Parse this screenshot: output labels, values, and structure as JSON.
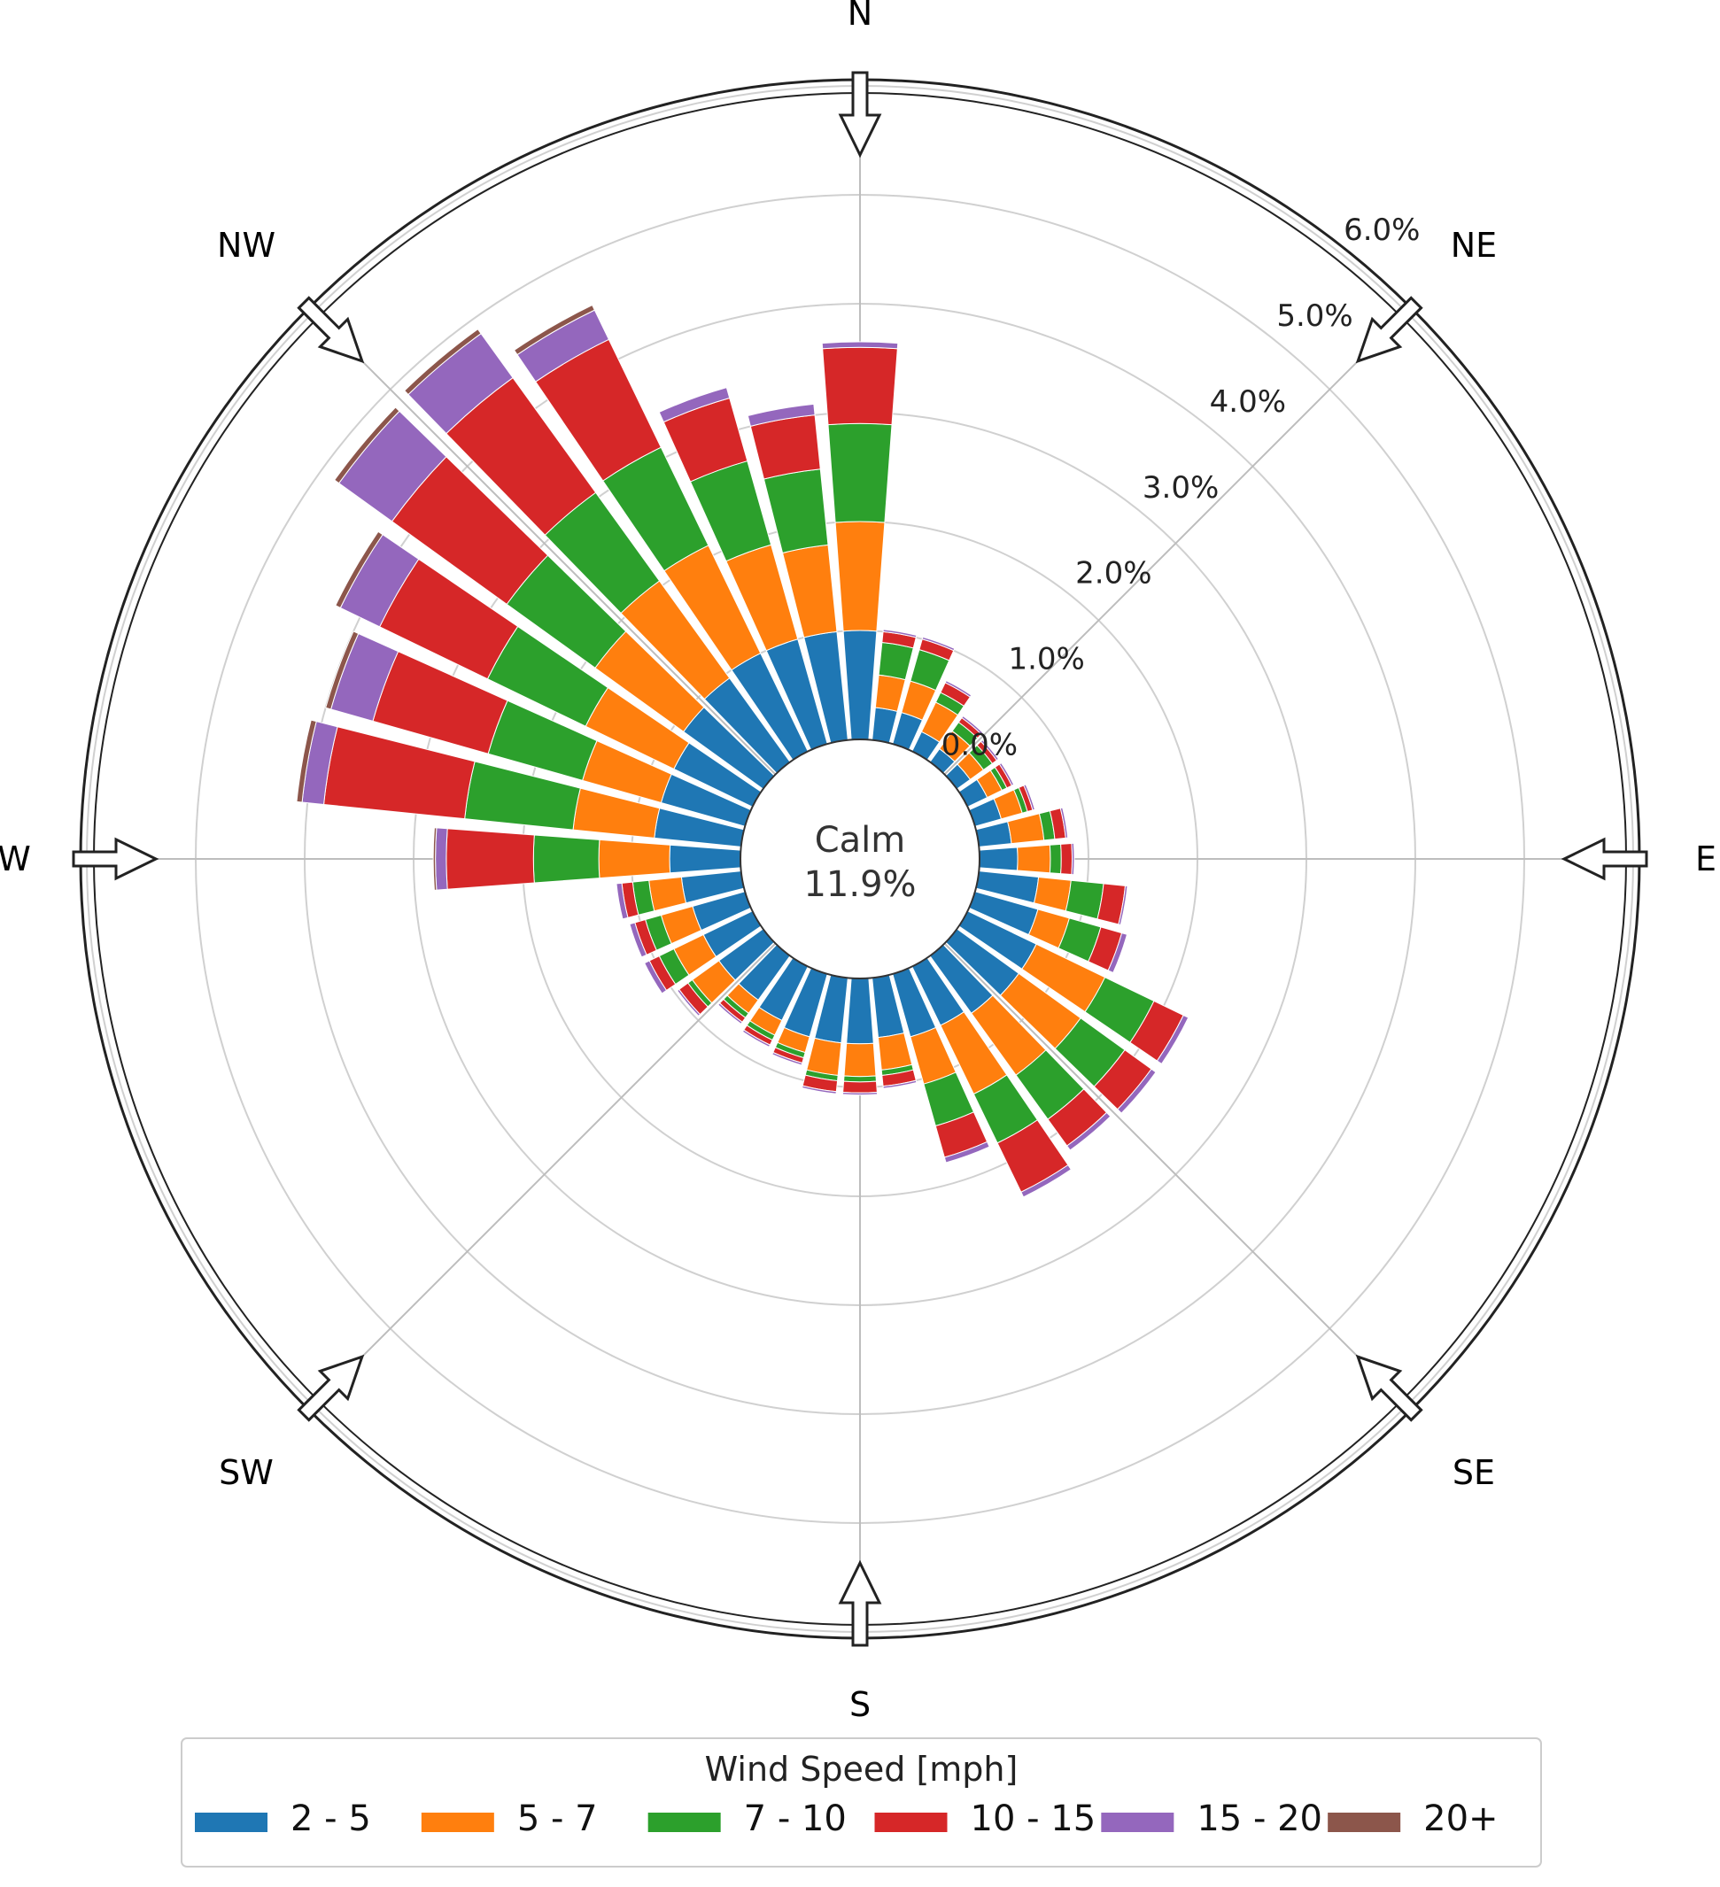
{
  "chart_data": {
    "type": "wind_rose",
    "title": "",
    "calm": {
      "label": "Calm",
      "value_text": "11.9%"
    },
    "compass_labels": [
      "N",
      "NE",
      "E",
      "SE",
      "S",
      "SW",
      "W",
      "NW"
    ],
    "radial_ticks": [
      "0.0%",
      "1.0%",
      "2.0%",
      "3.0%",
      "4.0%",
      "5.0%",
      "6.0%"
    ],
    "radial_tick_values": [
      0,
      1,
      2,
      3,
      4,
      5,
      6
    ],
    "rmax": 6.5,
    "grid": true,
    "sector_count": 36,
    "sector_degrees": [
      0,
      10,
      20,
      30,
      40,
      50,
      60,
      70,
      80,
      90,
      100,
      110,
      120,
      130,
      140,
      150,
      160,
      170,
      180,
      190,
      200,
      210,
      220,
      230,
      240,
      250,
      260,
      270,
      280,
      290,
      300,
      310,
      320,
      330,
      340,
      350
    ],
    "legend": {
      "title": "Wind Speed [mph]",
      "placement": "bottom",
      "bins": [
        "2 - 5",
        "5 - 7",
        "7 - 10",
        "10 - 15",
        "15 - 20",
        "20+"
      ],
      "colors": [
        "#1f77b4",
        "#ff7f0e",
        "#2ca02c",
        "#d62728",
        "#9467bd",
        "#8c564b"
      ]
    },
    "series": [
      {
        "name": "2 - 5",
        "values": [
          1.0,
          0.3,
          0.3,
          0.2,
          0.15,
          0.15,
          0.2,
          0.25,
          0.3,
          0.35,
          0.55,
          0.6,
          0.7,
          0.7,
          0.65,
          0.6,
          0.6,
          0.55,
          0.6,
          0.6,
          0.6,
          0.55,
          0.5,
          0.5,
          0.5,
          0.5,
          0.55,
          0.65,
          0.8,
          0.8,
          0.8,
          0.9,
          0.95,
          1.0,
          1.0,
          1.0
        ]
      },
      {
        "name": "5 - 7",
        "values": [
          1.0,
          0.3,
          0.3,
          0.3,
          0.2,
          0.15,
          0.15,
          0.2,
          0.3,
          0.3,
          0.3,
          0.3,
          0.7,
          0.7,
          0.7,
          0.7,
          0.45,
          0.3,
          0.3,
          0.3,
          0.15,
          0.15,
          0.15,
          0.3,
          0.3,
          0.3,
          0.3,
          0.65,
          0.75,
          0.75,
          0.9,
          1.0,
          1.1,
          1.1,
          0.9,
          0.8
        ]
      },
      {
        "name": "7 - 10",
        "values": [
          0.9,
          0.3,
          0.3,
          0.1,
          0.1,
          0.1,
          0.05,
          0.05,
          0.1,
          0.1,
          0.3,
          0.3,
          0.5,
          0.5,
          0.5,
          0.5,
          0.4,
          0.05,
          0.05,
          0.05,
          0.05,
          0.05,
          0.05,
          0.05,
          0.15,
          0.15,
          0.15,
          0.6,
          1.0,
          0.9,
          1.0,
          1.0,
          1.0,
          1.0,
          0.8,
          0.7
        ]
      },
      {
        "name": "10 - 15",
        "values": [
          0.7,
          0.1,
          0.1,
          0.1,
          0.05,
          0.05,
          0.05,
          0.05,
          0.1,
          0.1,
          0.2,
          0.2,
          0.3,
          0.3,
          0.3,
          0.5,
          0.3,
          0.1,
          0.1,
          0.1,
          0.05,
          0.05,
          0.05,
          0.1,
          0.1,
          0.1,
          0.1,
          0.8,
          1.3,
          1.1,
          1.1,
          1.3,
          1.3,
          1.1,
          0.6,
          0.5
        ]
      },
      {
        "name": "15 - 20",
        "values": [
          0.05,
          0.02,
          0.02,
          0.02,
          0.02,
          0.02,
          0.02,
          0.02,
          0.02,
          0.02,
          0.02,
          0.05,
          0.05,
          0.05,
          0.05,
          0.05,
          0.05,
          0.02,
          0.02,
          0.02,
          0.02,
          0.02,
          0.02,
          0.02,
          0.05,
          0.05,
          0.05,
          0.1,
          0.2,
          0.4,
          0.4,
          0.6,
          0.5,
          0.3,
          0.1,
          0.1
        ]
      },
      {
        "name": "20+",
        "values": [
          0.0,
          0.0,
          0.0,
          0.0,
          0.0,
          0.0,
          0.0,
          0.0,
          0.0,
          0.0,
          0.0,
          0.0,
          0.0,
          0.0,
          0.0,
          0.0,
          0.0,
          0.0,
          0.0,
          0.0,
          0.0,
          0.0,
          0.0,
          0.0,
          0.0,
          0.0,
          0.0,
          0.02,
          0.05,
          0.05,
          0.05,
          0.05,
          0.05,
          0.05,
          0.0,
          0.0
        ]
      }
    ]
  }
}
